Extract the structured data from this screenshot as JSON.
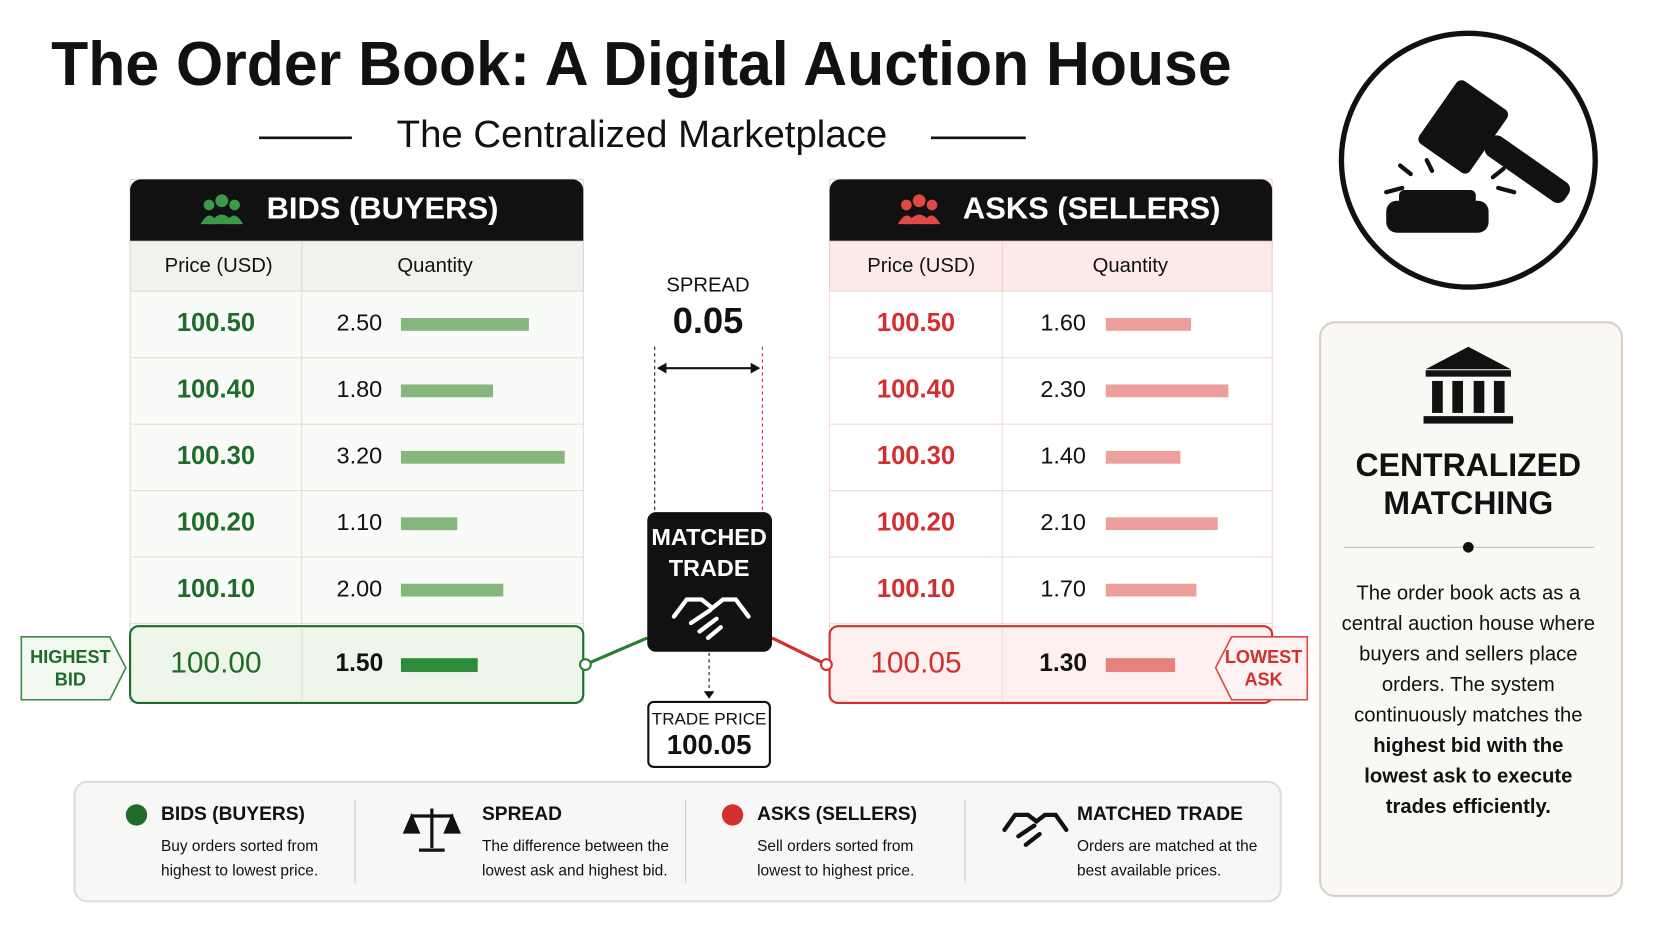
{
  "title": "The Order Book: A Digital Auction House",
  "subtitle": "The Centralized Marketplace",
  "bids": {
    "header": "BIDS (BUYERS)",
    "columns": [
      "Price (USD)",
      "Quantity"
    ],
    "color": "#1e6b2a",
    "bar_color": "#85b67b",
    "best_color": "#2e8b3a",
    "rows": [
      [
        "100.50",
        "2.50"
      ],
      [
        "100.40",
        "1.80"
      ],
      [
        "100.30",
        "3.20"
      ],
      [
        "100.20",
        "1.10"
      ],
      [
        "100.10",
        "2.00"
      ]
    ],
    "best": [
      "100.00",
      "1.50"
    ],
    "tag": [
      "HIGHEST",
      "BID"
    ]
  },
  "asks": {
    "header": "ASKS (SELLERS)",
    "columns": [
      "Price (USD)",
      "Quantity"
    ],
    "color": "#d32f2f",
    "bar_color": "#ec9f9b",
    "best_color": "#e8817c",
    "rows": [
      [
        "100.50",
        "1.60"
      ],
      [
        "100.40",
        "2.30"
      ],
      [
        "100.30",
        "1.40"
      ],
      [
        "100.20",
        "2.10"
      ],
      [
        "100.10",
        "1.70"
      ]
    ],
    "best": [
      "100.05",
      "1.30"
    ],
    "tag": [
      "LOWEST",
      "ASK"
    ]
  },
  "spread": {
    "label": "SPREAD",
    "value": "0.05"
  },
  "matched": {
    "label": [
      "MATCHED",
      "TRADE"
    ]
  },
  "trade_price": {
    "label": "TRADE PRICE",
    "value": "100.05"
  },
  "panel": {
    "title": [
      "CENTRALIZED",
      "MATCHING"
    ],
    "body": [
      {
        "text": "The order book acts as a",
        "bold": false
      },
      {
        "text": "central auction house where",
        "bold": false
      },
      {
        "text": "buyers and sellers place",
        "bold": false
      },
      {
        "text": "orders. The system",
        "bold": false
      },
      {
        "text": "continuously matches the",
        "bold": false
      },
      {
        "text": "highest bid with the",
        "bold": true
      },
      {
        "text": "lowest ask to execute",
        "bold": true
      },
      {
        "text": "trades efficiently.",
        "bold": true
      }
    ]
  },
  "legend": [
    {
      "title": "BIDS (BUYERS)",
      "text": [
        "Buy orders sorted from",
        "highest to lowest price."
      ]
    },
    {
      "title": "SPREAD",
      "text": [
        "The difference between the",
        "lowest ask and highest bid."
      ]
    },
    {
      "title": "ASKS (SELLERS)",
      "text": [
        "Sell orders sorted from",
        "lowest to highest price."
      ]
    },
    {
      "title": "MATCHED TRADE",
      "text": [
        "Orders are matched at the",
        "best available prices."
      ]
    }
  ]
}
